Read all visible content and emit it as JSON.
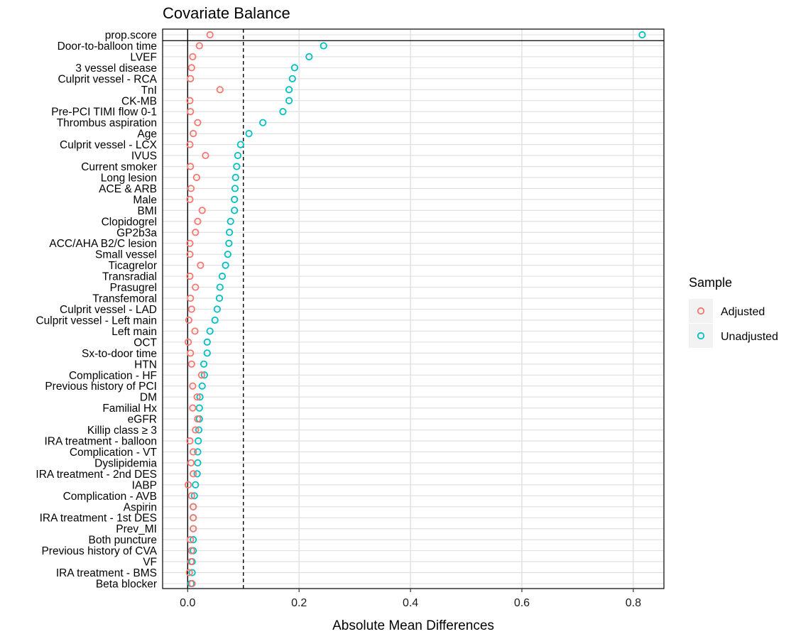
{
  "chart_data": {
    "type": "scatter",
    "title": "Covariate Balance",
    "xlabel": "Absolute Mean Differences",
    "ylabel": "",
    "xlim": [
      -0.045,
      0.855
    ],
    "x_ticks": [
      "0.0",
      "0.2",
      "0.4",
      "0.6",
      "0.8"
    ],
    "x_tick_values": [
      0.0,
      0.2,
      0.4,
      0.6,
      0.8
    ],
    "reference_lines": {
      "solid": 0.0,
      "dashed": 0.1
    },
    "grid": true,
    "legend": {
      "title": "Sample",
      "position": "right"
    },
    "categories": [
      "prop.score",
      "Door-to-balloon time",
      "LVEF",
      "3 vessel disease",
      "Culprit vessel - RCA",
      "TnI",
      "CK-MB",
      "Pre-PCI TIMI flow 0-1",
      "Thrombus aspiration",
      "Age",
      "Culprit vessel - LCX",
      "IVUS",
      "Current smoker",
      "Long lesion",
      "ACE & ARB",
      "Male",
      "BMI",
      "Clopidogrel",
      "GP2b3a",
      "ACC/AHA B2/C lesion",
      "Small vessel",
      "Ticagrelor",
      "Transradial",
      "Prasugrel",
      "Transfemoral",
      "Culprit vessel - LAD",
      "Culprit vessel - Left main",
      "Left main",
      "OCT",
      "Sx-to-door time",
      "HTN",
      "Complication - HF",
      "Previous history of PCI",
      "DM",
      "Familial Hx",
      "eGFR",
      "Killip class ≥ 3",
      "IRA treatment - balloon",
      "Complication - VT",
      "Dyslipidemia",
      "IRA treatment - 2nd DES",
      "IABP",
      "Complication - AVB",
      "Aspirin",
      "IRA treatment - 1st DES",
      "Prev_MI",
      "Both puncture",
      "Previous history of CVA",
      "VF",
      "IRA treatment -   BMS",
      "Beta blocker"
    ],
    "series": [
      {
        "name": "Adjusted",
        "color": "#F8766D",
        "values": [
          0.04,
          0.021,
          0.009,
          0.007,
          0.005,
          0.058,
          0.004,
          0.005,
          0.018,
          0.01,
          0.004,
          0.032,
          0.005,
          0.016,
          0.006,
          0.004,
          0.026,
          0.018,
          0.014,
          0.004,
          0.004,
          0.023,
          0.004,
          0.014,
          0.005,
          0.007,
          0.002,
          0.013,
          0.001,
          0.005,
          0.007,
          0.025,
          0.009,
          0.017,
          0.009,
          0.018,
          0.014,
          0.004,
          0.01,
          0.006,
          0.01,
          0.001,
          0.007,
          0.01,
          0.01,
          0.01,
          0.005,
          0.007,
          0.006,
          0.003,
          0.008
        ]
      },
      {
        "name": "Unadjusted",
        "color": "#00BFC4",
        "values": [
          0.816,
          0.244,
          0.218,
          0.192,
          0.188,
          0.182,
          0.182,
          0.171,
          0.135,
          0.11,
          0.095,
          0.09,
          0.088,
          0.086,
          0.085,
          0.084,
          0.084,
          0.077,
          0.075,
          0.074,
          0.072,
          0.068,
          0.062,
          0.058,
          0.057,
          0.053,
          0.049,
          0.04,
          0.035,
          0.035,
          0.029,
          0.03,
          0.026,
          0.022,
          0.021,
          0.021,
          0.02,
          0.019,
          0.018,
          0.018,
          0.017,
          0.014,
          0.012,
          0.01,
          0.01,
          0.01,
          0.01,
          0.01,
          0.008,
          0.008,
          0.006
        ]
      }
    ]
  }
}
